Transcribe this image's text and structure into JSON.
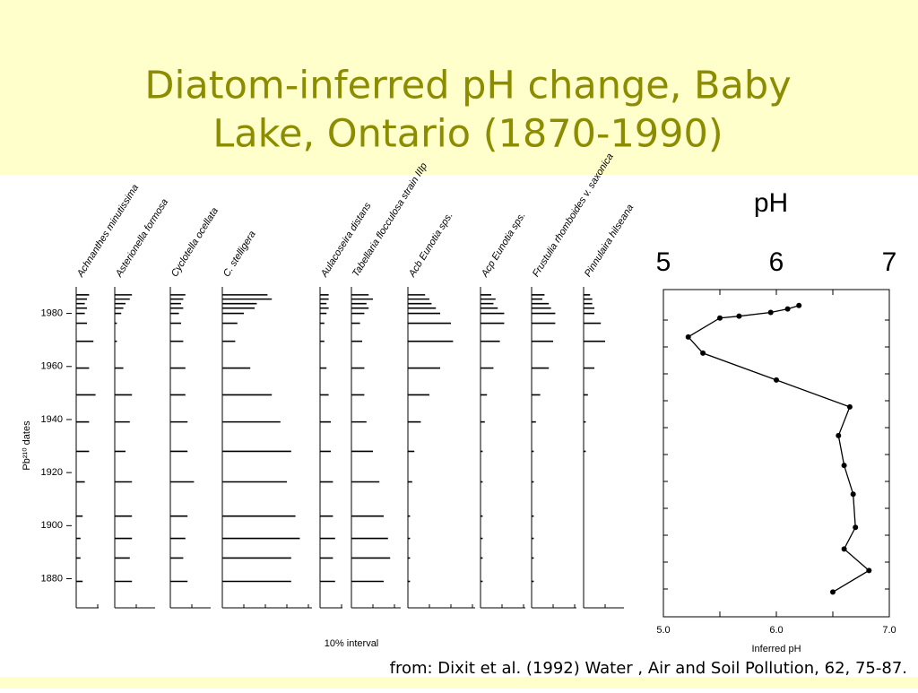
{
  "title": [
    "Diatom-inferred pH change, Baby",
    "Lake, Ontario (1870-1990)"
  ],
  "source": "from: Dixit et al. (1992) Water , Air and Soil Pollution, 62, 75-87.",
  "chart_data": [
    {
      "type": "stratigraphy",
      "y_label": "Pb²¹⁰ dates",
      "x_label": "10% interval",
      "ylim": [
        1867,
        1990
      ],
      "yticks": [
        1880,
        1900,
        1920,
        1940,
        1960,
        1980
      ],
      "dates": [
        1987,
        1985.4,
        1983.7,
        1982,
        1980,
        1976.3,
        1969.5,
        1959.4,
        1949.3,
        1939.1,
        1928,
        1916.5,
        1903.6,
        1895.2,
        1887.8,
        1879
      ],
      "series": [
        {
          "name": "Achnanthes minutissima",
          "values": [
            6,
            5,
            4,
            5,
            4,
            5,
            8,
            6,
            9,
            6,
            6,
            4,
            3,
            2,
            2,
            3
          ]
        },
        {
          "name": "Asterionella formosa",
          "values": [
            8,
            7,
            5,
            4,
            3,
            1,
            1,
            4,
            8,
            7,
            5,
            8,
            8,
            8,
            7,
            8
          ]
        },
        {
          "name": "Cyclotella ocellata",
          "values": [
            7,
            6,
            5,
            6,
            4,
            5,
            6,
            7,
            7,
            8,
            8,
            11,
            8,
            7,
            6,
            8
          ]
        },
        {
          "name": "C. stelligera",
          "values": [
            21,
            23,
            16,
            15,
            10,
            7,
            6,
            13,
            23,
            27,
            32,
            30,
            34,
            36,
            32,
            32
          ]
        },
        {
          "name": "Aulacoseira distans",
          "values": [
            4,
            4,
            3,
            4,
            3,
            2,
            2,
            3,
            4,
            5,
            5,
            6,
            6,
            7,
            6,
            7
          ]
        },
        {
          "name": "Tabellaria flocculosa strain IIIp",
          "values": [
            8,
            10,
            7,
            8,
            6,
            4,
            5,
            6,
            6,
            7,
            10,
            13,
            15,
            17,
            18,
            15
          ]
        },
        {
          "name": "Acb Eunotia sps.",
          "values": [
            8,
            10,
            11,
            13,
            15,
            20,
            21,
            15,
            10,
            6,
            3,
            2,
            1,
            1,
            1,
            1
          ]
        },
        {
          "name": "Acp Eunotia sps.",
          "values": [
            5,
            7,
            6,
            8,
            11,
            11,
            9,
            6,
            3,
            2,
            1,
            1,
            1,
            1,
            1,
            1
          ]
        },
        {
          "name": "Frustulia rhomboides v. saxonica",
          "values": [
            6,
            5,
            8,
            9,
            11,
            11,
            10,
            8,
            4,
            2,
            1,
            1,
            1,
            1,
            1,
            1
          ]
        },
        {
          "name": "Pinnulaira hilseana",
          "values": [
            3,
            4,
            4,
            5,
            5,
            8,
            10,
            5,
            2,
            1,
            1,
            0,
            0,
            0,
            0,
            0
          ]
        }
      ]
    },
    {
      "type": "scatter",
      "title": "pH",
      "x_label": "Inferred pH",
      "xlim": [
        5,
        7
      ],
      "ylim": [
        1867,
        1990
      ],
      "xticks": [
        {
          "value": 5,
          "label": "5.0"
        },
        5.5,
        {
          "value": 6,
          "label": "6.0"
        },
        6.5,
        {
          "value": 7,
          "label": "7.0"
        }
      ],
      "top_xticks": [
        5,
        6,
        7
      ],
      "x": [
        6.2,
        6.1,
        5.95,
        5.67,
        5.5,
        5.22,
        5.35,
        6.0,
        6.65,
        6.55,
        6.6,
        6.68,
        6.7,
        6.6,
        6.82,
        6.5
      ],
      "y": [
        1984,
        1982.7,
        1981.4,
        1980,
        1979.3,
        1972.2,
        1966.1,
        1956,
        1945.9,
        1935.1,
        1923.9,
        1913.1,
        1900.6,
        1892.5,
        1884.4,
        1876.3
      ],
      "color": "#000000"
    }
  ]
}
